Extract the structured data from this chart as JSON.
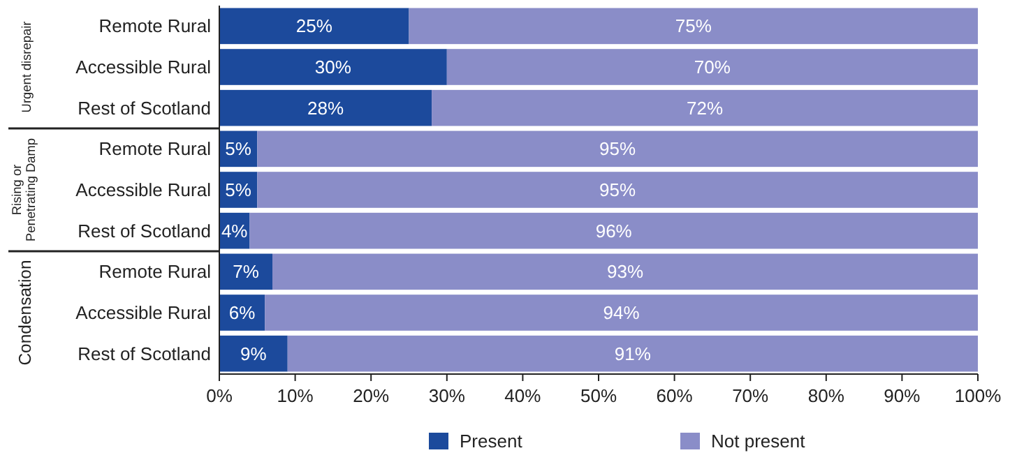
{
  "chart_data": {
    "type": "bar",
    "orientation": "horizontal",
    "stacked": true,
    "categories": [
      "Remote Rural",
      "Accessible Rural",
      "Rest of Scotland",
      "Remote Rural",
      "Accessible Rural",
      "Rest of Scotland",
      "Remote Rural",
      "Accessible Rural",
      "Rest of Scotland"
    ],
    "series": [
      {
        "name": "Present",
        "color": "#1c4a9c",
        "values": [
          25,
          30,
          28,
          5,
          5,
          4,
          7,
          6,
          9
        ],
        "value_labels": [
          "25%",
          "30%",
          "28%",
          "5%",
          "5%",
          "4%",
          "7%",
          "6%",
          "9%"
        ]
      },
      {
        "name": "Not present",
        "color": "#8a8dc8",
        "values": [
          75,
          70,
          72,
          95,
          95,
          96,
          93,
          94,
          91
        ],
        "value_labels": [
          "75%",
          "70%",
          "72%",
          "95%",
          "95%",
          "96%",
          "93%",
          "94%",
          "91%"
        ]
      }
    ],
    "xlim": [
      0,
      100
    ],
    "xticks": [
      {
        "value": 0,
        "label": "0%"
      },
      {
        "value": 10,
        "label": "10%"
      },
      {
        "value": 20,
        "label": "20%"
      },
      {
        "value": 30,
        "label": "30%"
      },
      {
        "value": 40,
        "label": "40%"
      },
      {
        "value": 50,
        "label": "50%"
      },
      {
        "value": 60,
        "label": "60%"
      },
      {
        "value": 70,
        "label": "70%"
      },
      {
        "value": 80,
        "label": "80%"
      },
      {
        "value": 90,
        "label": "90%"
      },
      {
        "value": 100,
        "label": "100%"
      }
    ],
    "annotations": [
      "Urgent disrepair",
      "Rising or Penetrating Damp",
      "Condensation"
    ],
    "legend": "bottom",
    "grid": false
  }
}
